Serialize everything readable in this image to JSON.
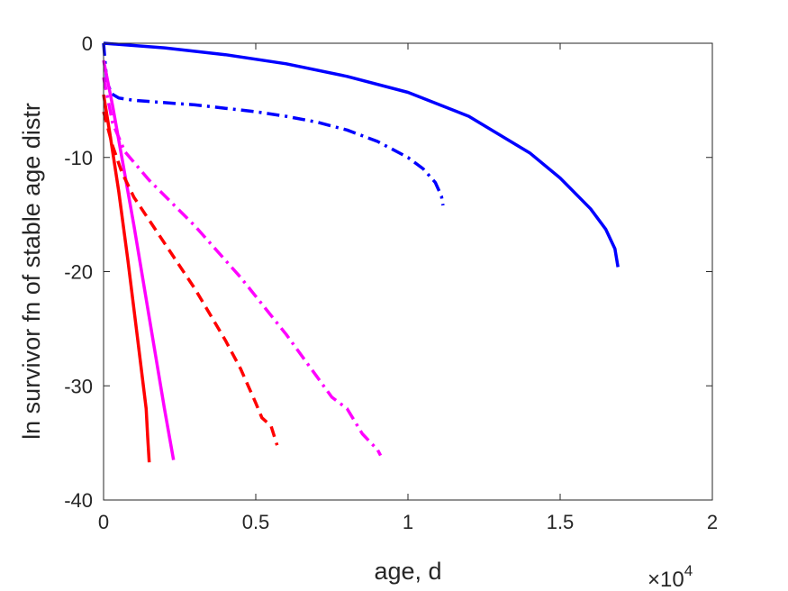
{
  "chart_data": {
    "type": "line",
    "title": "",
    "xlabel": "age, d",
    "ylabel": "ln survivor fn of stable age distr",
    "x_exponent_label": {
      "base": "×10",
      "exponent": "4"
    },
    "xlim": [
      0,
      20000
    ],
    "ylim": [
      -40,
      0
    ],
    "x_ticks": [
      0,
      5000,
      10000,
      15000,
      20000
    ],
    "x_tick_labels": [
      "0",
      "0.5",
      "1",
      "1.5",
      "2"
    ],
    "y_ticks": [
      -40,
      -30,
      -20,
      -10,
      0
    ],
    "y_tick_labels": [
      "-40",
      "-30",
      "-20",
      "-10",
      "0"
    ],
    "grid": false,
    "box": true,
    "series": [
      {
        "color": "#0000ff",
        "style": "solid",
        "x": [
          0,
          2000,
          4000,
          6000,
          8000,
          10000,
          12000,
          14000,
          15000,
          16000,
          16500,
          16800,
          16900
        ],
        "y": [
          0,
          -0.4,
          -1.0,
          -1.8,
          -2.9,
          -4.3,
          -6.4,
          -9.6,
          -11.8,
          -14.5,
          -16.3,
          -18.0,
          -19.6
        ]
      },
      {
        "color": "#0000ff",
        "style": "dashdot",
        "x": [
          0,
          100,
          250,
          500,
          1000,
          2000,
          3000,
          4000,
          5000,
          6000,
          7000,
          8000,
          9000,
          10000,
          10500,
          10900,
          11100,
          11150
        ],
        "y": [
          0,
          -3.2,
          -4.4,
          -4.8,
          -5.0,
          -5.2,
          -5.4,
          -5.7,
          -6.0,
          -6.4,
          -6.9,
          -7.6,
          -8.6,
          -10.0,
          -11.0,
          -12.2,
          -13.4,
          -14.2
        ]
      },
      {
        "color": "#ff0000",
        "style": "solid",
        "x": [
          0,
          200,
          500,
          800,
          1100,
          1400,
          1450,
          1500
        ],
        "y": [
          -4.5,
          -7.8,
          -13.0,
          -19.0,
          -25.5,
          -32.0,
          -34.5,
          -36.7
        ]
      },
      {
        "color": "#ff00ff",
        "style": "solid",
        "x": [
          0,
          300,
          600,
          1000,
          1500,
          2000,
          2300
        ],
        "y": [
          -1.5,
          -5.5,
          -10.0,
          -16.0,
          -24.0,
          -32.0,
          -36.5
        ]
      },
      {
        "color": "#ff0000",
        "style": "dashed",
        "x": [
          0,
          300,
          600,
          1000,
          2000,
          3000,
          4000,
          4500,
          5000,
          5200,
          5500,
          5700
        ],
        "y": [
          -6.0,
          -9.0,
          -11.3,
          -13.5,
          -17.5,
          -21.5,
          -26.0,
          -28.5,
          -31.5,
          -32.8,
          -33.5,
          -35.2
        ]
      },
      {
        "color": "#ff00ff",
        "style": "dashdot",
        "x": [
          0,
          300,
          700,
          1500,
          3000,
          4500,
          6000,
          7500,
          8000,
          8500,
          9000,
          9100
        ],
        "y": [
          -3.0,
          -7.0,
          -9.5,
          -12.0,
          -16.0,
          -20.5,
          -25.5,
          -31.0,
          -32.0,
          -34.2,
          -35.6,
          -36.1
        ]
      }
    ]
  }
}
